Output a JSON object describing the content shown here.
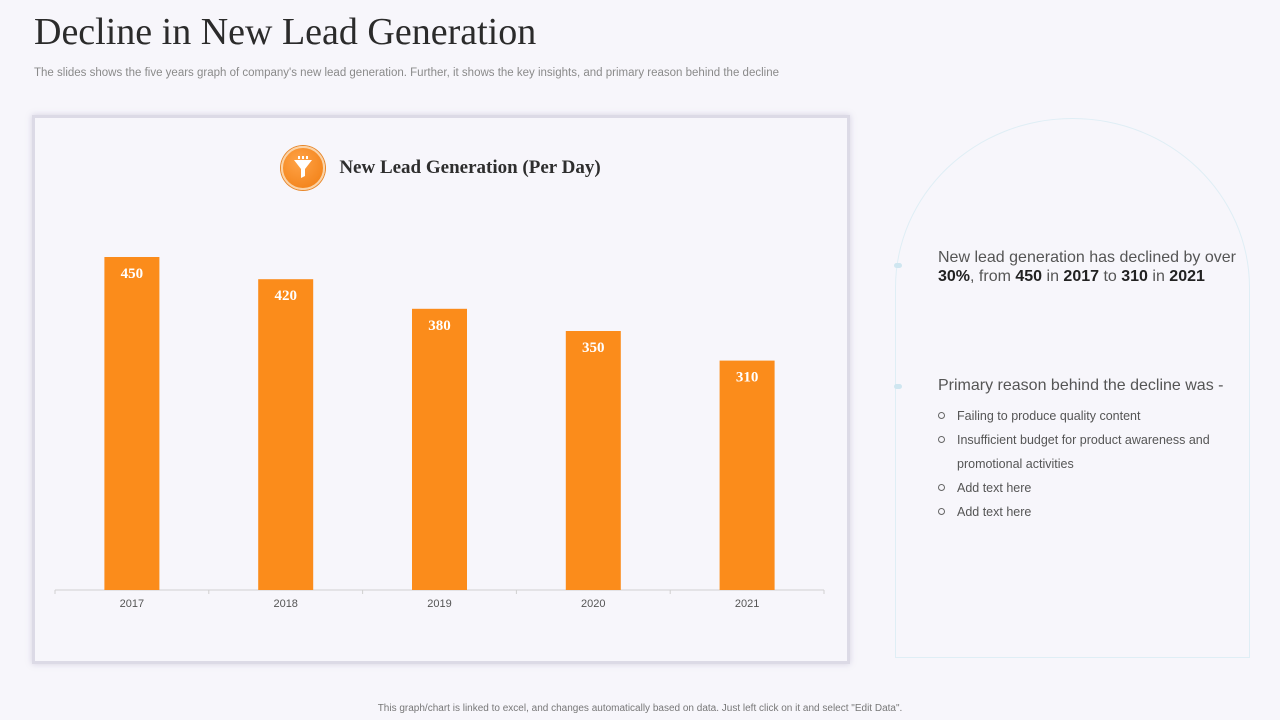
{
  "page": {
    "title": "Decline in New Lead Generation",
    "subtitle": "The slides shows the five years graph of company's new lead generation. Further, it shows the key insights, and primary reason behind the decline",
    "footer": "This graph/chart is linked to excel, and changes automatically based on data. Just left click on it and select \"Edit Data\"."
  },
  "colors": {
    "bar": "#fb8c1b",
    "accent": "#f07c10"
  },
  "chart_header": {
    "icon": "funnel-icon"
  },
  "chart_data": {
    "type": "bar",
    "title": "New Lead Generation (Per Day)",
    "categories": [
      "2017",
      "2018",
      "2019",
      "2020",
      "2021"
    ],
    "values": [
      450,
      420,
      380,
      350,
      310
    ],
    "xlabel": "",
    "ylabel": "",
    "ylim": [
      0,
      450
    ],
    "grid": false,
    "data_labels": true
  },
  "insight": {
    "pre": "New lead generation has declined by over ",
    "pct": "30%",
    "mid1": ", from ",
    "from_value": "450",
    "mid2": " in ",
    "from_year": "2017",
    "mid3": " to ",
    "to_value": "310",
    "mid4": " in ",
    "to_year": "2021"
  },
  "reasons": {
    "heading": "Primary reason behind the decline was -",
    "items": [
      "Failing to produce quality content",
      "Insufficient budget for product awareness and promotional activities",
      "Add text here",
      "Add text here"
    ]
  }
}
